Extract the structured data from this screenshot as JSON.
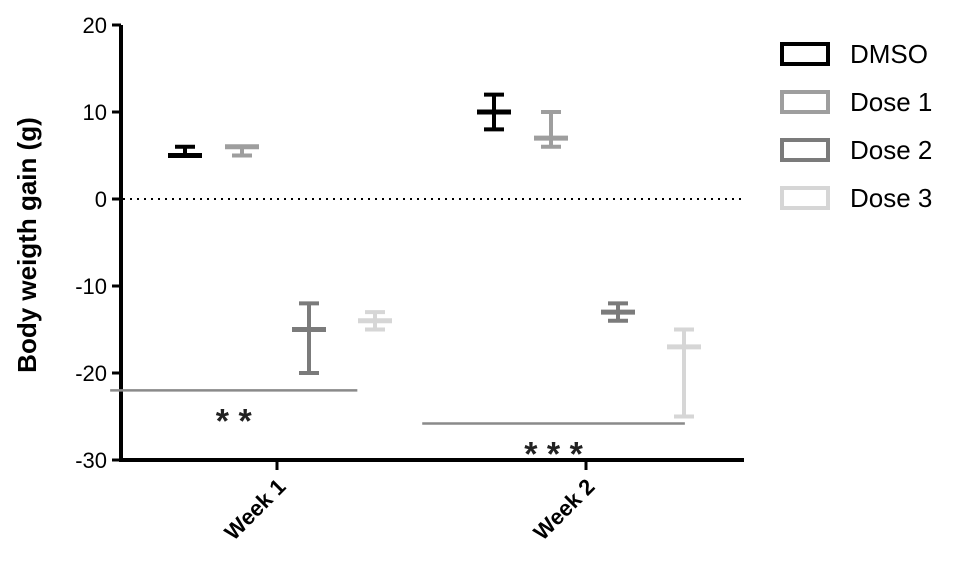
{
  "chart_data": {
    "type": "scatter",
    "ylabel": "Body weigth gain (g)",
    "ylim": [
      -30,
      20
    ],
    "yticks": [
      20,
      10,
      0,
      -10,
      -20,
      -30
    ],
    "categories": [
      "Week 1",
      "Week 2"
    ],
    "reference_line": 0,
    "series": [
      {
        "name": "DMSO",
        "color": "#000000",
        "points": [
          {
            "mean": 5,
            "upper": 6,
            "lower": 5
          },
          {
            "mean": 10,
            "upper": 12,
            "lower": 8
          }
        ]
      },
      {
        "name": "Dose 1",
        "color": "#9e9e9e",
        "points": [
          {
            "mean": 6,
            "upper": 6,
            "lower": 5
          },
          {
            "mean": 7,
            "upper": 10,
            "lower": 6
          }
        ]
      },
      {
        "name": "Dose 2",
        "color": "#7b7b7b",
        "points": [
          {
            "mean": -15,
            "upper": -12,
            "lower": -20
          },
          {
            "mean": -13,
            "upper": -12,
            "lower": -14
          }
        ]
      },
      {
        "name": "Dose 3",
        "color": "#d6d6d6",
        "points": [
          {
            "mean": -14,
            "upper": -13,
            "lower": -15
          },
          {
            "mean": -17,
            "upper": -15,
            "lower": -25
          }
        ]
      }
    ],
    "significance": [
      {
        "label": "* *",
        "y": -22,
        "x_from": 0.46,
        "x_to": 1.26
      },
      {
        "label": "* * *",
        "y": -25.8,
        "x_from": 1.47,
        "x_to": 2.32
      }
    ],
    "legend_position": "top-right"
  }
}
